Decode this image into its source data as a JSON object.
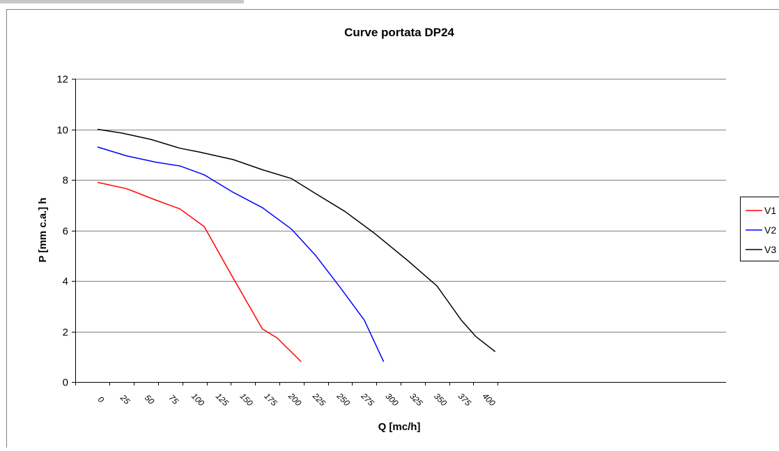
{
  "chart_data": {
    "type": "line",
    "title": "Curve portata DP24",
    "xlabel": "Q [mc/h]",
    "ylabel": "P [mm c.a.] h",
    "x_ticks": [
      "0",
      "25",
      "50",
      "75",
      "100",
      "125",
      "150",
      "175",
      "200",
      "225",
      "250",
      "275",
      "300",
      "325",
      "350",
      "375",
      "400"
    ],
    "y_ticks": [
      "0",
      "2",
      "4",
      "6",
      "8",
      "10",
      "12"
    ],
    "xlim": [
      0,
      400
    ],
    "ylim": [
      0,
      12
    ],
    "grid": "horizontal",
    "legend_position": "right",
    "series": [
      {
        "name": "V1",
        "color": "#ff0000",
        "points": [
          [
            0,
            7.9
          ],
          [
            30,
            7.65
          ],
          [
            60,
            7.2
          ],
          [
            85,
            6.85
          ],
          [
            110,
            6.15
          ],
          [
            140,
            4.1
          ],
          [
            170,
            2.1
          ],
          [
            185,
            1.75
          ],
          [
            210,
            0.8
          ]
        ]
      },
      {
        "name": "V2",
        "color": "#0000ff",
        "points": [
          [
            0,
            9.3
          ],
          [
            30,
            8.95
          ],
          [
            60,
            8.7
          ],
          [
            85,
            8.55
          ],
          [
            110,
            8.2
          ],
          [
            140,
            7.5
          ],
          [
            170,
            6.9
          ],
          [
            200,
            6.05
          ],
          [
            225,
            5.0
          ],
          [
            250,
            3.75
          ],
          [
            275,
            2.45
          ],
          [
            295,
            0.8
          ]
        ]
      },
      {
        "name": "V3",
        "color": "#000000",
        "points": [
          [
            0,
            10.0
          ],
          [
            25,
            9.85
          ],
          [
            55,
            9.6
          ],
          [
            85,
            9.25
          ],
          [
            105,
            9.1
          ],
          [
            140,
            8.8
          ],
          [
            170,
            8.4
          ],
          [
            200,
            8.05
          ],
          [
            225,
            7.45
          ],
          [
            255,
            6.75
          ],
          [
            285,
            5.9
          ],
          [
            320,
            4.8
          ],
          [
            350,
            3.8
          ],
          [
            375,
            2.45
          ],
          [
            390,
            1.8
          ],
          [
            410,
            1.2
          ]
        ]
      }
    ]
  }
}
